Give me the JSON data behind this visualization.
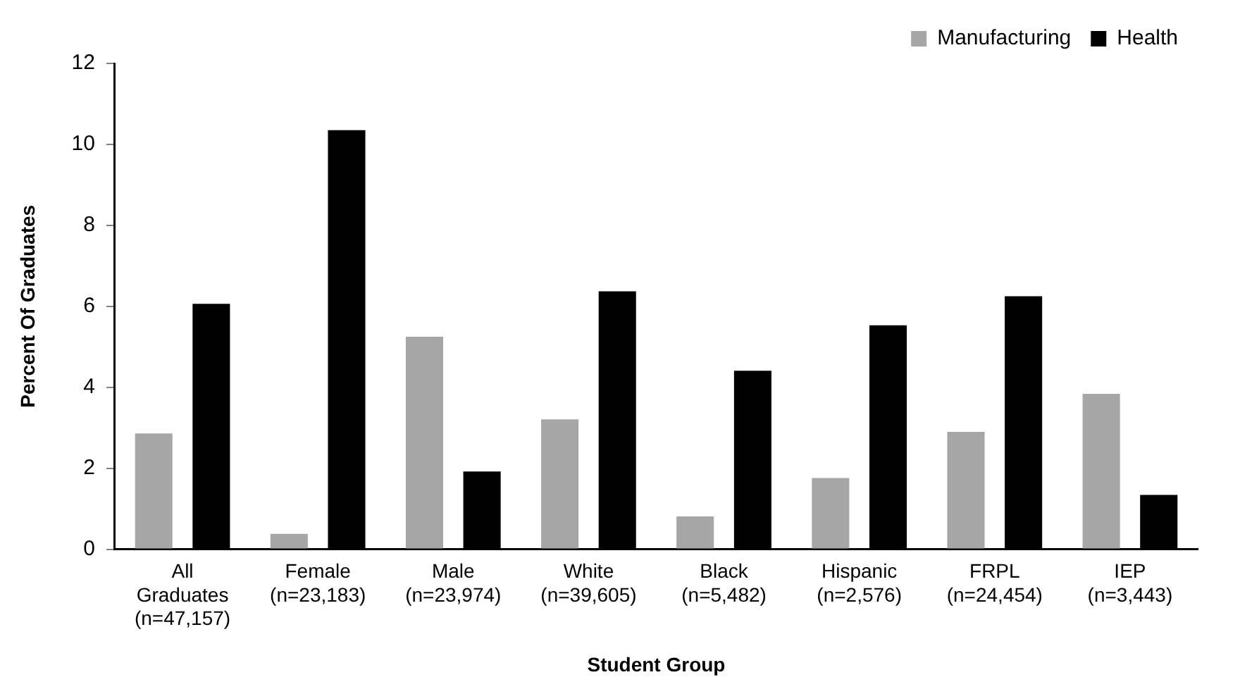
{
  "chart_data": {
    "type": "bar",
    "xlabel": "Student Group",
    "ylabel": "Percent Of Graduates",
    "categories": [
      "All Graduates (n=47,157)",
      "Female (n=23,183)",
      "Male (n=23,974)",
      "White (n=39,605)",
      "Black (n=5,482)",
      "Hispanic (n=2,576)",
      "FRPL (n=24,454)",
      "IEP (n=3,443)"
    ],
    "series": [
      {
        "name": "Manufacturing",
        "color": "#a6a6a6",
        "values": [
          2.86,
          0.38,
          5.25,
          3.21,
          0.81,
          1.76,
          2.9,
          3.84
        ]
      },
      {
        "name": "Health",
        "color": "#000000",
        "values": [
          6.06,
          10.35,
          1.92,
          6.37,
          4.41,
          5.53,
          6.25,
          1.34
        ]
      }
    ],
    "ylim": [
      0,
      12
    ],
    "yticks": [
      0,
      2,
      4,
      6,
      8,
      10,
      12
    ],
    "grid": false,
    "legend": "top right"
  }
}
